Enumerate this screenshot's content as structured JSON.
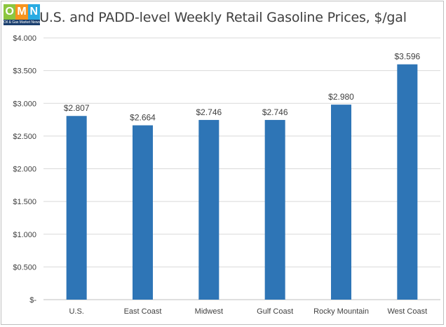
{
  "logo": {
    "letters": [
      "O",
      "M",
      "N"
    ],
    "colors": [
      "#8cc63f",
      "#f7941d",
      "#29abe2"
    ],
    "caption": "Oil & Gas Market News"
  },
  "chart_data": {
    "type": "bar",
    "title": "U.S. and PADD-level Weekly Retail Gasoline Prices, $/gal",
    "categories": [
      "U.S.",
      "East Coast",
      "Midwest",
      "Gulf Coast",
      "Rocky Mountain",
      "West Coast"
    ],
    "values": [
      2.807,
      2.664,
      2.746,
      2.746,
      2.98,
      3.596
    ],
    "data_labels": [
      "$2.807",
      "$2.664",
      "$2.746",
      "$2.746",
      "$2.980",
      "$3.596"
    ],
    "ylim": [
      0,
      4.0
    ],
    "y_ticks": [
      0,
      0.5,
      1.0,
      1.5,
      2.0,
      2.5,
      3.0,
      3.5,
      4.0
    ],
    "y_tick_labels": [
      "$-",
      "$0.500",
      "$1.000",
      "$1.500",
      "$2.000",
      "$2.500",
      "$3.000",
      "$3.500",
      "$4.000"
    ],
    "bar_color": "#2e75b6",
    "grid_color": "#d9d9d9",
    "grid": true,
    "legend": "none"
  }
}
